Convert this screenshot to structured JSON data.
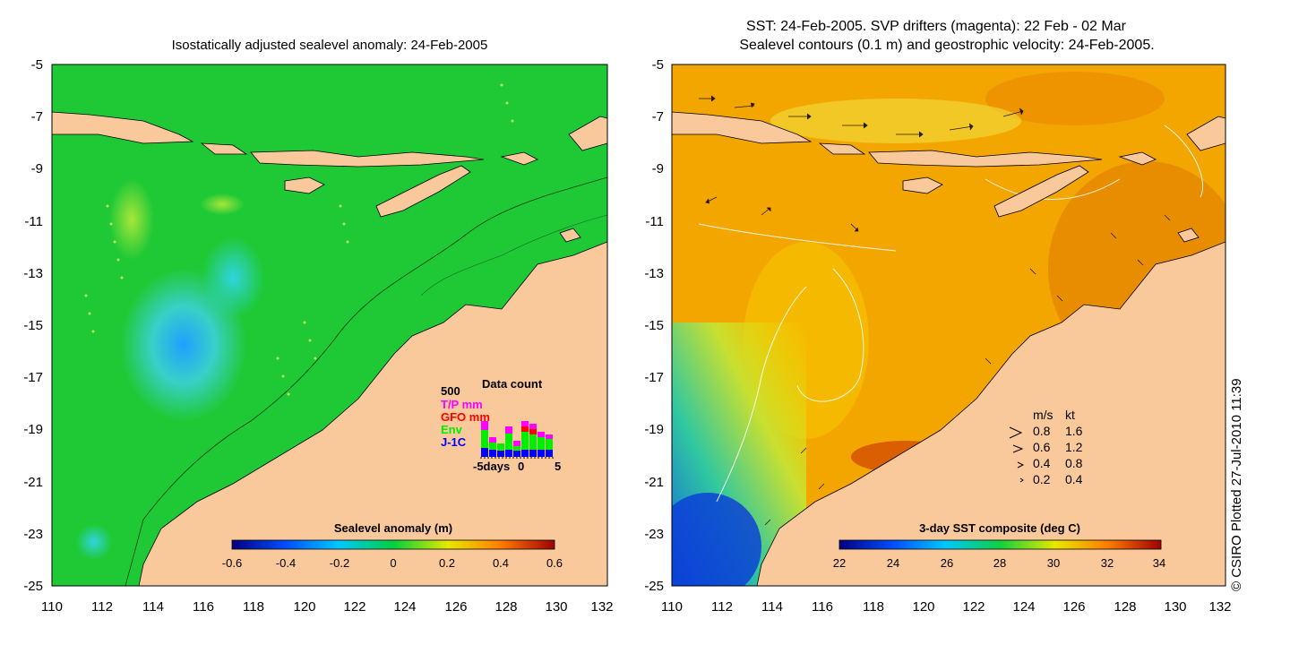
{
  "left_panel": {
    "title": "Isostatically adjusted sealevel anomaly: 24-Feb-2005",
    "colorbar": {
      "label": "Sealevel anomaly (m)",
      "ticks": [
        "-0.6",
        "-0.4",
        "-0.2",
        "0",
        "0.2",
        "0.4",
        "0.6"
      ]
    },
    "data_count": {
      "title": "Data count",
      "scale_label": "500",
      "legend": [
        {
          "label": "T/P mm",
          "color": "#ff00ff"
        },
        {
          "label": "GFO mm",
          "color": "#ff0000"
        },
        {
          "label": "Env",
          "color": "#00ee00"
        },
        {
          "label": "J-1C",
          "color": "#0000ff"
        }
      ],
      "x_label_left": "-5days",
      "x_label_mid": "0",
      "x_label_right": "5"
    }
  },
  "right_panel": {
    "title_line1": "SST: 24-Feb-2005. SVP drifters (magenta): 22 Feb - 02 Mar",
    "title_line2": "Sealevel contours (0.1 m) and geostrophic velocity: 24-Feb-2005.",
    "colorbar": {
      "label": "3-day SST composite (deg C)",
      "ticks": [
        "22",
        "24",
        "26",
        "28",
        "30",
        "32",
        "34"
      ]
    },
    "velocity_key": {
      "header_ms": "m/s",
      "header_kt": "kt",
      "rows": [
        {
          "ms": "0.8",
          "kt": "1.6"
        },
        {
          "ms": "0.6",
          "kt": "1.2"
        },
        {
          "ms": "0.4",
          "kt": "0.8"
        },
        {
          "ms": "0.2",
          "kt": "0.4"
        }
      ]
    }
  },
  "axes": {
    "y_ticks": [
      "-5",
      "-7",
      "-9",
      "-11",
      "-13",
      "-15",
      "-17",
      "-19",
      "-21",
      "-23",
      "-25"
    ],
    "x_ticks": [
      "110",
      "112",
      "114",
      "116",
      "118",
      "120",
      "122",
      "124",
      "126",
      "128",
      "130",
      "132"
    ]
  },
  "credit": "© CSIRO Plotted 27-Jul-2010 11:39",
  "colors": {
    "land": "#f9c89b",
    "ocean_anomaly": "#1fc936",
    "ocean_sst": "#f4a600"
  }
}
